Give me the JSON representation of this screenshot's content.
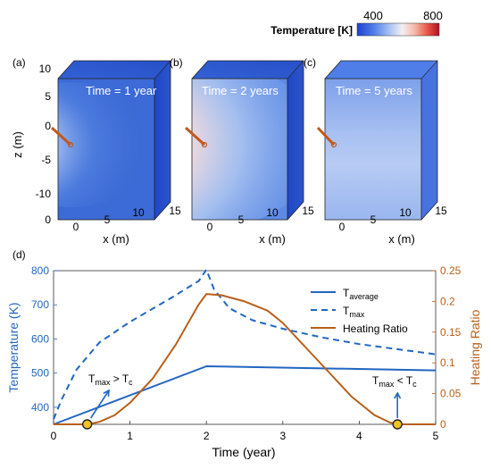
{
  "colorbar": {
    "title": "Temperature [K]",
    "min_label": "400",
    "max_label": "800",
    "min": 400,
    "max": 800
  },
  "panels": [
    {
      "tag": "(a)",
      "time_label": "Time = 1 year",
      "intensity": 0.55,
      "spread": 0.8
    },
    {
      "tag": "(b)",
      "time_label": "Time = 2 years",
      "intensity": 1.0,
      "spread": 1.25
    },
    {
      "tag": "(c)",
      "time_label": "Time = 5 years",
      "intensity": 0.0,
      "spread": 1.0
    }
  ],
  "panel_axes": {
    "zlabel": "z (m)",
    "xlabel": "x (m)",
    "z_ticks": [
      "10",
      "5",
      "0",
      "-5",
      "-10"
    ],
    "x_ticks": [
      "0",
      "5",
      "10",
      "15"
    ]
  },
  "colors": {
    "temp_line": "#2166c0",
    "ratio_line": "#b8601a",
    "right_axis": "#b8601a",
    "left_axis": "#2166c0",
    "marker_fill": "#f4c21f",
    "box_face_cold": "#3c6ad6",
    "box_face_warm": "#d9262a"
  },
  "chart_data": {
    "type": "line",
    "panel_tag": "(d)",
    "xlabel": "Time (year)",
    "ylabel_left": "Temperature (K)",
    "ylabel_right": "Heating Ratio",
    "xlim": [
      0,
      5
    ],
    "ylim_left": [
      350,
      800
    ],
    "ylim_right": [
      0,
      0.25
    ],
    "x_ticks": [
      0,
      1,
      2,
      3,
      4,
      5
    ],
    "y_ticks_left": [
      400,
      500,
      600,
      700,
      800
    ],
    "y_ticks_right": [
      0,
      0.05,
      0.1,
      0.15,
      0.2,
      0.25
    ],
    "y_tick_labels_left": [
      "400",
      "500",
      "600",
      "700",
      "800"
    ],
    "y_tick_labels_right": [
      "0",
      "0.05",
      "0.1",
      "0.15",
      "0.2",
      "0.25"
    ],
    "x_tick_labels": [
      "0",
      "1",
      "2",
      "3",
      "4",
      "5"
    ],
    "series": [
      {
        "name": "T_average",
        "axis": "left",
        "style": "solid",
        "x": [
          0,
          2,
          5
        ],
        "y": [
          350,
          520,
          508
        ]
      },
      {
        "name": "T_max",
        "axis": "left",
        "style": "dashed",
        "x": [
          0,
          0.1,
          0.3,
          0.6,
          1.0,
          1.5,
          1.9,
          2.0,
          2.1,
          2.3,
          2.6,
          3.0,
          3.5,
          4.0,
          4.5,
          5.0
        ],
        "y": [
          365,
          420,
          510,
          590,
          650,
          715,
          770,
          803,
          745,
          690,
          655,
          630,
          605,
          585,
          570,
          555
        ]
      },
      {
        "name": "Heating Ratio",
        "axis": "right",
        "style": "solid",
        "x": [
          0,
          0.45,
          0.6,
          0.8,
          1.0,
          1.3,
          1.6,
          1.9,
          2.0,
          2.2,
          2.5,
          2.8,
          3.0,
          3.3,
          3.6,
          3.9,
          4.2,
          4.4,
          4.55,
          5.0
        ],
        "y": [
          0,
          0,
          0.004,
          0.015,
          0.035,
          0.075,
          0.13,
          0.195,
          0.212,
          0.21,
          0.2,
          0.185,
          0.165,
          0.125,
          0.085,
          0.045,
          0.015,
          0.003,
          0,
          0
        ]
      }
    ],
    "legend": {
      "position": "upper-right",
      "entries": [
        {
          "main": "T",
          "sub": "average"
        },
        {
          "main": "T",
          "sub": "max"
        },
        {
          "main": "Heating Ratio",
          "sub": ""
        }
      ]
    },
    "annotations": [
      {
        "id": "left",
        "x": 0.44,
        "main1": "T",
        "sub1": "max",
        "op": " > T",
        "sub2": "c"
      },
      {
        "id": "right",
        "x": 4.5,
        "main1": "T",
        "sub1": "max",
        "op": " < T",
        "sub2": "c"
      }
    ],
    "markers": [
      {
        "x": 0.44,
        "y_right": 0
      },
      {
        "x": 4.5,
        "y_right": 0
      }
    ]
  }
}
